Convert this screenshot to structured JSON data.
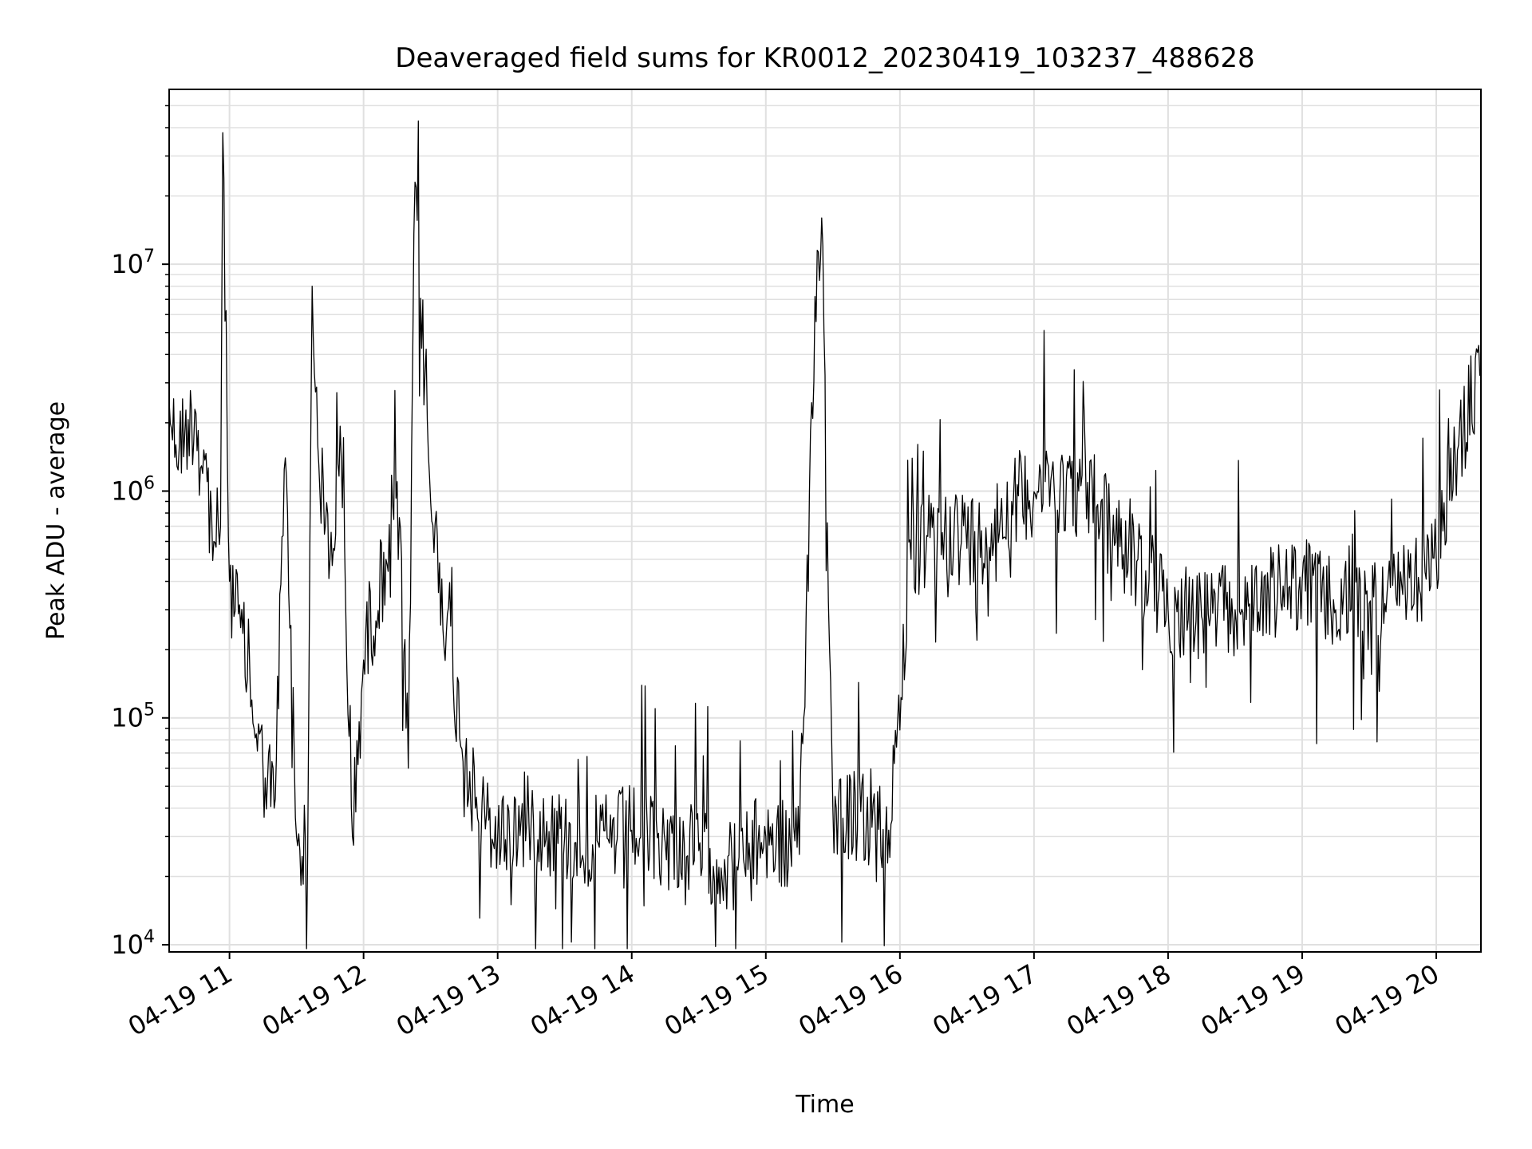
{
  "chart_data": {
    "type": "line",
    "title": "Deaveraged field sums for KR0012_20230419_103237_488628",
    "xlabel": "Time",
    "ylabel": "Peak ADU - average",
    "xlim": [
      "2023-04-19 10:33",
      "2023-04-19 20:20"
    ],
    "ylim": [
      9300,
      59000000
    ],
    "yscale": "log",
    "grid": true,
    "line_color": "#000000",
    "grid_color": "#e0e0e0",
    "x_ticks": [
      {
        "value": "2023-04-19 11:00",
        "label": "04-19 11"
      },
      {
        "value": "2023-04-19 12:00",
        "label": "04-19 12"
      },
      {
        "value": "2023-04-19 13:00",
        "label": "04-19 13"
      },
      {
        "value": "2023-04-19 14:00",
        "label": "04-19 14"
      },
      {
        "value": "2023-04-19 15:00",
        "label": "04-19 15"
      },
      {
        "value": "2023-04-19 16:00",
        "label": "04-19 16"
      },
      {
        "value": "2023-04-19 17:00",
        "label": "04-19 17"
      },
      {
        "value": "2023-04-19 18:00",
        "label": "04-19 18"
      },
      {
        "value": "2023-04-19 19:00",
        "label": "04-19 19"
      },
      {
        "value": "2023-04-19 20:00",
        "label": "04-19 20"
      }
    ],
    "y_ticks": [
      {
        "value": 10000,
        "base": "10",
        "exp": "4"
      },
      {
        "value": 100000,
        "base": "10",
        "exp": "5"
      },
      {
        "value": 1000000,
        "base": "10",
        "exp": "6"
      },
      {
        "value": 10000000,
        "base": "10",
        "exp": "7"
      }
    ],
    "x": [
      "2023-04-19 10:33",
      "2023-04-19 10:36",
      "2023-04-19 10:40",
      "2023-04-19 10:45",
      "2023-04-19 10:50",
      "2023-04-19 10:53",
      "2023-04-19 10:56",
      "2023-04-19 10:57",
      "2023-04-19 11:00",
      "2023-04-19 11:05",
      "2023-04-19 11:10",
      "2023-04-19 11:15",
      "2023-04-19 11:20",
      "2023-04-19 11:25",
      "2023-04-19 11:30",
      "2023-04-19 11:35",
      "2023-04-19 11:37",
      "2023-04-19 11:40",
      "2023-04-19 11:45",
      "2023-04-19 11:50",
      "2023-04-19 11:55",
      "2023-04-19 12:00",
      "2023-04-19 12:10",
      "2023-04-19 12:15",
      "2023-04-19 12:20",
      "2023-04-19 12:23",
      "2023-04-19 12:30",
      "2023-04-19 12:40",
      "2023-04-19 12:50",
      "2023-04-19 13:00",
      "2023-04-19 13:15",
      "2023-04-19 13:30",
      "2023-04-19 13:45",
      "2023-04-19 14:00",
      "2023-04-19 14:15",
      "2023-04-19 14:30",
      "2023-04-19 14:45",
      "2023-04-19 15:00",
      "2023-04-19 15:15",
      "2023-04-19 15:22",
      "2023-04-19 15:25",
      "2023-04-19 15:30",
      "2023-04-19 15:45",
      "2023-04-19 15:55",
      "2023-04-19 16:05",
      "2023-04-19 16:20",
      "2023-04-19 16:35",
      "2023-04-19 16:50",
      "2023-04-19 17:05",
      "2023-04-19 17:20",
      "2023-04-19 17:30",
      "2023-04-19 17:45",
      "2023-04-19 18:00",
      "2023-04-19 18:15",
      "2023-04-19 18:30",
      "2023-04-19 18:45",
      "2023-04-19 19:00",
      "2023-04-19 19:15",
      "2023-04-19 19:30",
      "2023-04-19 19:45",
      "2023-04-19 20:00",
      "2023-04-19 20:10",
      "2023-04-19 20:20"
    ],
    "y": [
      2500000,
      1600000,
      1800000,
      2200000,
      1100000,
      600000,
      700000,
      38000000,
      400000,
      250000,
      120000,
      60000,
      40000,
      1400000,
      30000,
      25000,
      8000000,
      1300000,
      500000,
      1400000,
      30000,
      180000,
      500000,
      1100000,
      60000,
      23000000,
      900000,
      150000,
      40000,
      30000,
      35000,
      30000,
      28000,
      32000,
      28000,
      26000,
      22000,
      30000,
      25000,
      7200000,
      16000000,
      40000,
      35000,
      32000,
      500000,
      700000,
      600000,
      900000,
      1100000,
      1000000,
      900000,
      500000,
      300000,
      280000,
      300000,
      350000,
      400000,
      300000,
      320000,
      350000,
      500000,
      1600000,
      3500000
    ]
  }
}
